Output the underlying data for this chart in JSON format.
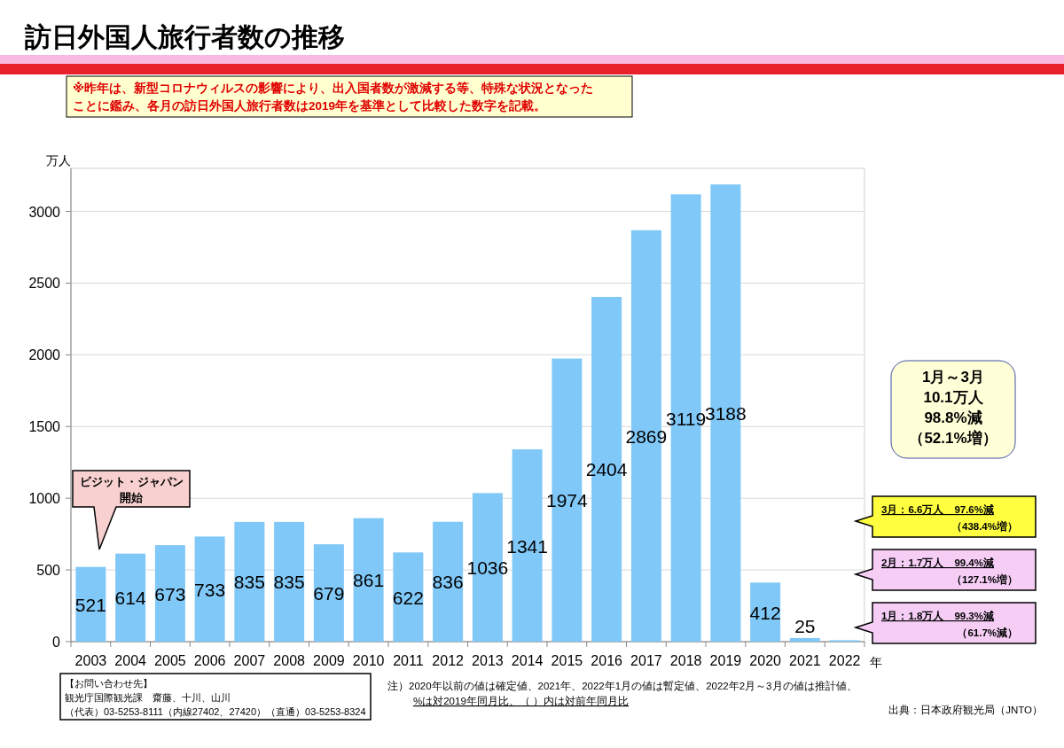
{
  "chart_data": {
    "type": "bar",
    "title": "訪日外国人旅行者数の推移",
    "subtitle": "※昨年は、新型コロナウィルスの影響により、出入国者数が激減する等、特殊な状況となった",
    "ylabel": "万人",
    "xlabel": "年",
    "categories": [
      "2003",
      "2004",
      "2005",
      "2006",
      "2007",
      "2008",
      "2009",
      "2010",
      "2011",
      "2012",
      "2013",
      "2014",
      "2015",
      "2016",
      "2017",
      "2018",
      "2019",
      "2020",
      "2021",
      "2022"
    ],
    "values": [
      521,
      614,
      673,
      733,
      835,
      835,
      679,
      861,
      622,
      836,
      1036,
      1341,
      1974,
      2404,
      2869,
      3119,
      3188,
      412,
      25,
      10
    ],
    "value_labels": [
      "521",
      "614",
      "673",
      "733",
      "835",
      "835",
      "679",
      "861",
      "622",
      "836",
      "1036",
      "1341",
      "1974",
      "2404",
      "2869",
      "3119",
      "3188",
      "412",
      "25",
      null
    ],
    "color": "#80c8f8",
    "ylim": [
      0,
      3300
    ],
    "yticks": [
      0,
      500,
      1000,
      1500,
      2000,
      2500,
      3000
    ],
    "grid": "y",
    "annotations": [
      "ことに鑑み、各月の訪日外国人旅行者数は2019年を基準として比較した数字を記載。",
      "ビジット・ジャパン",
      "開始",
      "1月～3月",
      "10.1万人",
      "98.8%減",
      "（52.1%増）",
      "3月：6.6万人　97.6%減",
      "（438.4%増）",
      "2月：1.7万人　99.4%減",
      "（127.1%増）",
      "1月：1.8万人　99.3%減",
      "（61.7%減）",
      "【お問い合わせ先】",
      "観光庁国際観光課　齋藤、十川、山川",
      "（代表）03-5253-8111（内線27402、27420）（直通）03-5253-8324",
      "注）2020年以前の値は確定値、2021年、2022年1月の値は暫定値、2022年2月～3月の値は推計値、",
      "%は対2019年同月比、（ ）内は対前年同月比",
      "出典：日本政府観光局（JNTO）"
    ]
  }
}
